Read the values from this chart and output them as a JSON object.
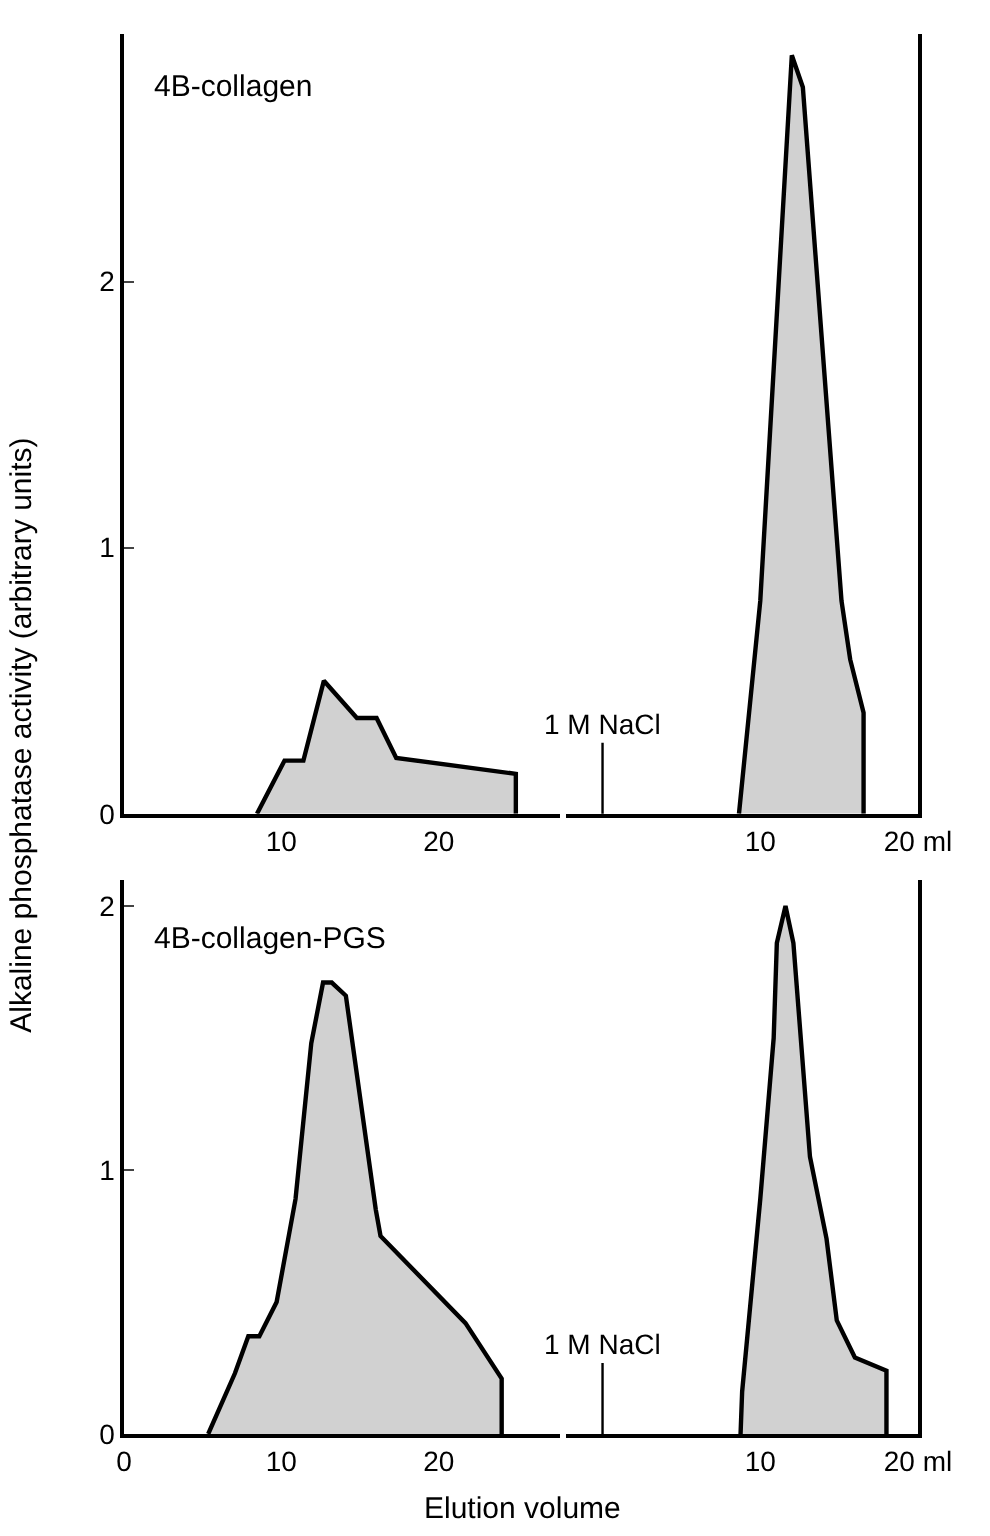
{
  "chart_data": [
    {
      "type": "area",
      "title": "4B-collagen",
      "ylabel": "Alkaline phosphatase activity (arbitrary units)",
      "xlim": [
        0,
        27.7
      ],
      "xticks": [
        10,
        20
      ],
      "ylim": [
        0,
        2.93
      ],
      "yticks": [
        0,
        1,
        2
      ],
      "series": [
        {
          "color": "#000000",
          "x": [
            8.45,
            10.2,
            11.4,
            12.7,
            14.8,
            16.05,
            17.3,
            24.9,
            24.9
          ],
          "values": [
            0,
            0.2,
            0.2,
            0.5,
            0.36,
            0.36,
            0.21,
            0.15,
            0
          ]
        }
      ]
    },
    {
      "type": "area",
      "xlim": [
        -2.3,
        20
      ],
      "xticks": [
        10,
        {
          "value": 20,
          "label": "20 ml"
        }
      ],
      "ylim": [
        0,
        2.93
      ],
      "tick_labels": "x",
      "ref_lines": [
        {
          "axis": "x",
          "value": 0,
          "label": "1 M NaCl"
        }
      ],
      "series": [
        {
          "color": "#000000",
          "x": [
            8.65,
            10.0,
            12.0,
            12.7,
            15.15,
            15.7,
            16.55,
            16.55
          ],
          "values": [
            0,
            0.8,
            2.85,
            2.73,
            0.8,
            0.58,
            0.38,
            0
          ]
        }
      ]
    },
    {
      "type": "area",
      "title": "4B-collagen-PGS",
      "xlabel": "Elution volume",
      "xlim": [
        0,
        27.7
      ],
      "xticks": [
        0,
        10,
        20
      ],
      "ylim": [
        0,
        2.1
      ],
      "yticks": [
        0,
        1,
        2
      ],
      "series": [
        {
          "color": "#000000",
          "x": [
            5.35,
            7.05,
            7.9,
            8.6,
            9.7,
            10.9,
            11.9,
            12.65,
            13.2,
            14.1,
            16.0,
            16.3,
            21.7,
            24.0,
            24.0
          ],
          "values": [
            0,
            0.23,
            0.37,
            0.37,
            0.5,
            0.89,
            1.48,
            1.71,
            1.71,
            1.66,
            0.85,
            0.75,
            0.42,
            0.21,
            0
          ]
        }
      ]
    },
    {
      "type": "area",
      "xlim": [
        -2.3,
        20
      ],
      "xticks": [
        10,
        {
          "value": 20,
          "label": "20 ml"
        }
      ],
      "ylim": [
        0,
        2.1
      ],
      "tick_labels": "x",
      "ref_lines": [
        {
          "axis": "x",
          "value": 0,
          "label": "1 M NaCl"
        }
      ],
      "series": [
        {
          "color": "#000000",
          "x": [
            8.75,
            8.85,
            10.0,
            10.85,
            11.05,
            11.6,
            12.1,
            13.15,
            14.2,
            14.85,
            16.0,
            18.0,
            18.0
          ],
          "values": [
            0,
            0.16,
            0.89,
            1.5,
            1.86,
            2.0,
            1.86,
            1.05,
            0.74,
            0.43,
            0.29,
            0.24,
            0
          ]
        }
      ]
    }
  ]
}
